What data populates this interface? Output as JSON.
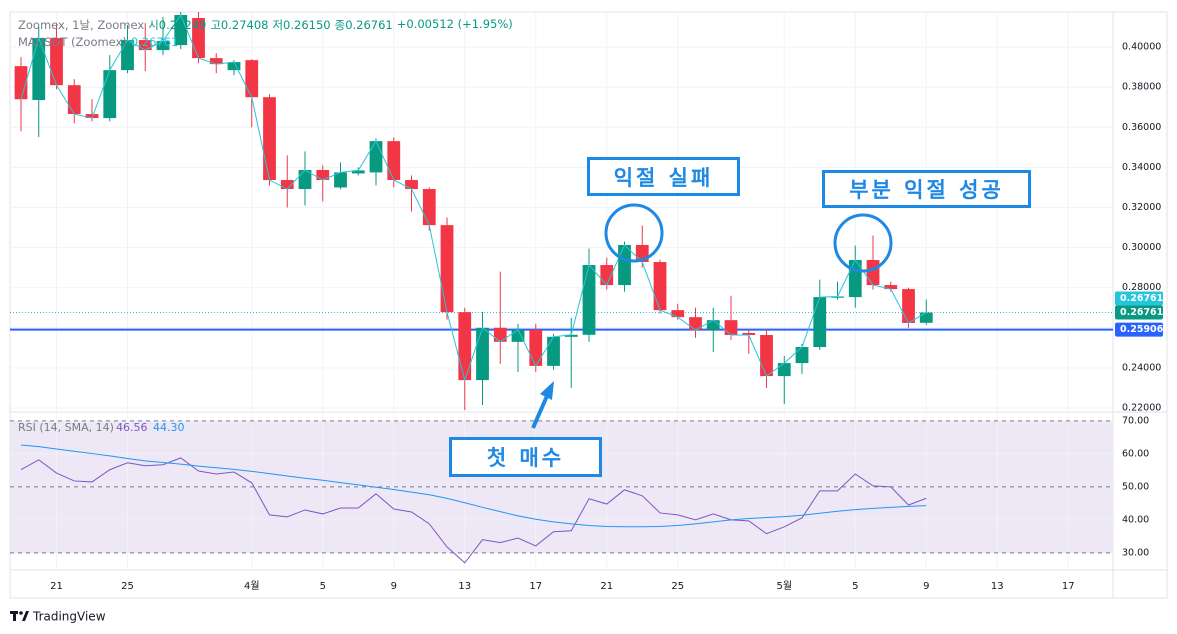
{
  "chart_data": {
    "type": "candlestick",
    "header": {
      "symbol": "Zoomex, 1날, Zoomex",
      "open": "시0.26249",
      "high": "고0.27408",
      "low": "저0.26150",
      "close": "종0.26761",
      "change": "+0.00512 (+1.95%)",
      "compare": "MAUSDT (Zoomex)",
      "compare_value": "0.26761"
    },
    "x": [
      0,
      1,
      2,
      3,
      4,
      5,
      6,
      7,
      8,
      9,
      10,
      11,
      12,
      13,
      14,
      15,
      16,
      17,
      18,
      19,
      20,
      21,
      22,
      23,
      24,
      25,
      26,
      27,
      28,
      29,
      30,
      31,
      32,
      33,
      34,
      35,
      36,
      37,
      38,
      39,
      40,
      41,
      42,
      43,
      44,
      45,
      46,
      47,
      48,
      49,
      50,
      51
    ],
    "open": [
      0.3905,
      0.3736,
      0.4045,
      0.381,
      0.3666,
      0.3646,
      0.3885,
      0.4035,
      0.3985,
      0.401,
      0.4145,
      0.3945,
      0.3885,
      0.3935,
      0.375,
      0.3337,
      0.3292,
      0.3387,
      0.33,
      0.337,
      0.3375,
      0.3531,
      0.3337,
      0.3292,
      0.3112,
      0.2678,
      0.2339,
      0.26,
      0.253,
      0.259,
      0.241,
      0.2555,
      0.2565,
      0.2913,
      0.2813,
      0.3013,
      0.2928,
      0.2688,
      0.2653,
      0.2589,
      0.2638,
      0.2574,
      0.2564,
      0.2359,
      0.2424,
      0.2504,
      0.275,
      0.2753,
      0.2938,
      0.2813,
      0.2793,
      0.26249
    ],
    "high": [
      0.395,
      0.41,
      0.412,
      0.384,
      0.374,
      0.396,
      0.411,
      0.412,
      0.415,
      0.4175,
      0.4175,
      0.397,
      0.3935,
      0.394,
      0.3765,
      0.346,
      0.348,
      0.341,
      0.3425,
      0.34,
      0.3545,
      0.355,
      0.336,
      0.33,
      0.315,
      0.27,
      0.268,
      0.288,
      0.262,
      0.262,
      0.257,
      0.265,
      0.2995,
      0.295,
      0.303,
      0.311,
      0.294,
      0.272,
      0.27,
      0.27,
      0.276,
      0.259,
      0.259,
      0.246,
      0.252,
      0.284,
      0.283,
      0.301,
      0.306,
      0.283,
      0.28,
      0.27408
    ],
    "low": [
      0.358,
      0.3551,
      0.379,
      0.362,
      0.363,
      0.363,
      0.387,
      0.388,
      0.396,
      0.399,
      0.392,
      0.387,
      0.386,
      0.36,
      0.331,
      0.32,
      0.321,
      0.323,
      0.329,
      0.336,
      0.331,
      0.33,
      0.318,
      0.3085,
      0.264,
      0.219,
      0.2215,
      0.242,
      0.238,
      0.238,
      0.239,
      0.23,
      0.253,
      0.279,
      0.278,
      0.29,
      0.267,
      0.264,
      0.255,
      0.248,
      0.254,
      0.247,
      0.23,
      0.222,
      0.237,
      0.249,
      0.274,
      0.27,
      0.279,
      0.278,
      0.26,
      0.2615
    ],
    "close": [
      0.374,
      0.4045,
      0.381,
      0.3666,
      0.3646,
      0.3885,
      0.4035,
      0.3985,
      0.403,
      0.416,
      0.3945,
      0.3915,
      0.3925,
      0.375,
      0.3337,
      0.3292,
      0.3387,
      0.3337,
      0.3375,
      0.3385,
      0.3531,
      0.3337,
      0.3292,
      0.3112,
      0.2678,
      0.2339,
      0.26,
      0.253,
      0.259,
      0.241,
      0.2555,
      0.2565,
      0.2913,
      0.2813,
      0.3013,
      0.2928,
      0.2688,
      0.2653,
      0.2589,
      0.2638,
      0.2564,
      0.2564,
      0.2359,
      0.2424,
      0.2504,
      0.2753,
      0.2756,
      0.2938,
      0.2813,
      0.2793,
      0.2624,
      0.26761
    ],
    "up_color": "#089981",
    "down_color": "#f23645",
    "line_color": "#26c6da",
    "xlim": [
      -0.62,
      61.52
    ],
    "xticks": [
      {
        "value": 2,
        "label": "21"
      },
      {
        "value": 6,
        "label": "25"
      },
      {
        "value": 13,
        "label": "4월"
      },
      {
        "value": 17,
        "label": "5"
      },
      {
        "value": 21,
        "label": "9"
      },
      {
        "value": 25,
        "label": "13"
      },
      {
        "value": 29,
        "label": "17"
      },
      {
        "value": 33,
        "label": "21"
      },
      {
        "value": 37,
        "label": "25"
      },
      {
        "value": 43,
        "label": "5월"
      },
      {
        "value": 47,
        "label": "5"
      },
      {
        "value": 51,
        "label": "9"
      },
      {
        "value": 55,
        "label": "13"
      },
      {
        "value": 59,
        "label": "17"
      }
    ],
    "ylim": [
      0.218,
      0.4175
    ],
    "yticks": [
      {
        "value": 0.22,
        "label": "0.22000"
      },
      {
        "value": 0.24,
        "label": "0.24000"
      },
      {
        "value": 0.26,
        "label": "0.26000"
      },
      {
        "value": 0.28,
        "label": "0.28000"
      },
      {
        "value": 0.3,
        "label": "0.30000"
      },
      {
        "value": 0.32,
        "label": "0.32000"
      },
      {
        "value": 0.34,
        "label": "0.34000"
      },
      {
        "value": 0.36,
        "label": "0.36000"
      },
      {
        "value": 0.38,
        "label": "0.38000"
      },
      {
        "value": 0.4,
        "label": "0.40000"
      }
    ],
    "grid": true,
    "price_lines": [
      {
        "value": 0.26761,
        "label": "0.26761",
        "color": "#089981",
        "style": "none"
      },
      {
        "value": 0.26761,
        "label": "0.26761",
        "color": "#26c6da",
        "style": "dotted"
      },
      {
        "value": 0.25906,
        "label": "0.25906",
        "color": "#2962ff",
        "style": "solid"
      }
    ],
    "rsi": {
      "title": "RSI (14, SMA, 14)",
      "legend_values": [
        "46.56",
        "44.30"
      ],
      "ylim": [
        24.8,
        72.7
      ],
      "yticks": [
        {
          "value": 30,
          "label": "30.00"
        },
        {
          "value": 40,
          "label": "40.00"
        },
        {
          "value": 50,
          "label": "50.00"
        },
        {
          "value": 60,
          "label": "60.00"
        },
        {
          "value": 70,
          "label": "70.00"
        }
      ],
      "bands": [
        30,
        50,
        70
      ],
      "band_fill": "#ede7f6",
      "series": [
        {
          "color": "#7e57c2",
          "values": [
            55.2,
            58.2,
            54.2,
            51.8,
            51.5,
            55.2,
            57.3,
            56.4,
            56.7,
            58.8,
            54.8,
            53.9,
            54.5,
            51.2,
            41.5,
            40.9,
            43.0,
            41.8,
            43.6,
            43.6,
            47.9,
            43.3,
            42.4,
            38.8,
            31.8,
            27.0,
            34.0,
            33.1,
            34.5,
            32.1,
            36.4,
            36.7,
            46.4,
            44.8,
            49.1,
            47.3,
            42.1,
            41.5,
            40.0,
            41.8,
            40.0,
            39.7,
            35.8,
            37.9,
            40.6,
            48.8,
            48.8,
            53.9,
            50.3,
            50.0,
            44.5,
            46.56
          ]
        },
        {
          "color": "#2196f3",
          "values": [
            62.7,
            62.2,
            61.5,
            60.8,
            60.1,
            59.4,
            58.6,
            57.9,
            57.4,
            56.9,
            56.3,
            55.8,
            55.3,
            54.7,
            54.0,
            53.3,
            52.6,
            52.0,
            51.3,
            50.6,
            49.9,
            49.2,
            48.4,
            47.6,
            46.5,
            45.2,
            43.8,
            42.5,
            41.2,
            40.2,
            39.4,
            38.8,
            38.3,
            38.0,
            37.9,
            37.9,
            38.0,
            38.3,
            38.8,
            39.4,
            40.0,
            40.4,
            40.7,
            41.0,
            41.4,
            42.0,
            42.6,
            43.1,
            43.5,
            43.8,
            44.1,
            44.3
          ]
        }
      ]
    },
    "annotations": [
      "익절 실패",
      "부분 익절 성공",
      "첫 매수"
    ],
    "footer": "TradingView"
  }
}
